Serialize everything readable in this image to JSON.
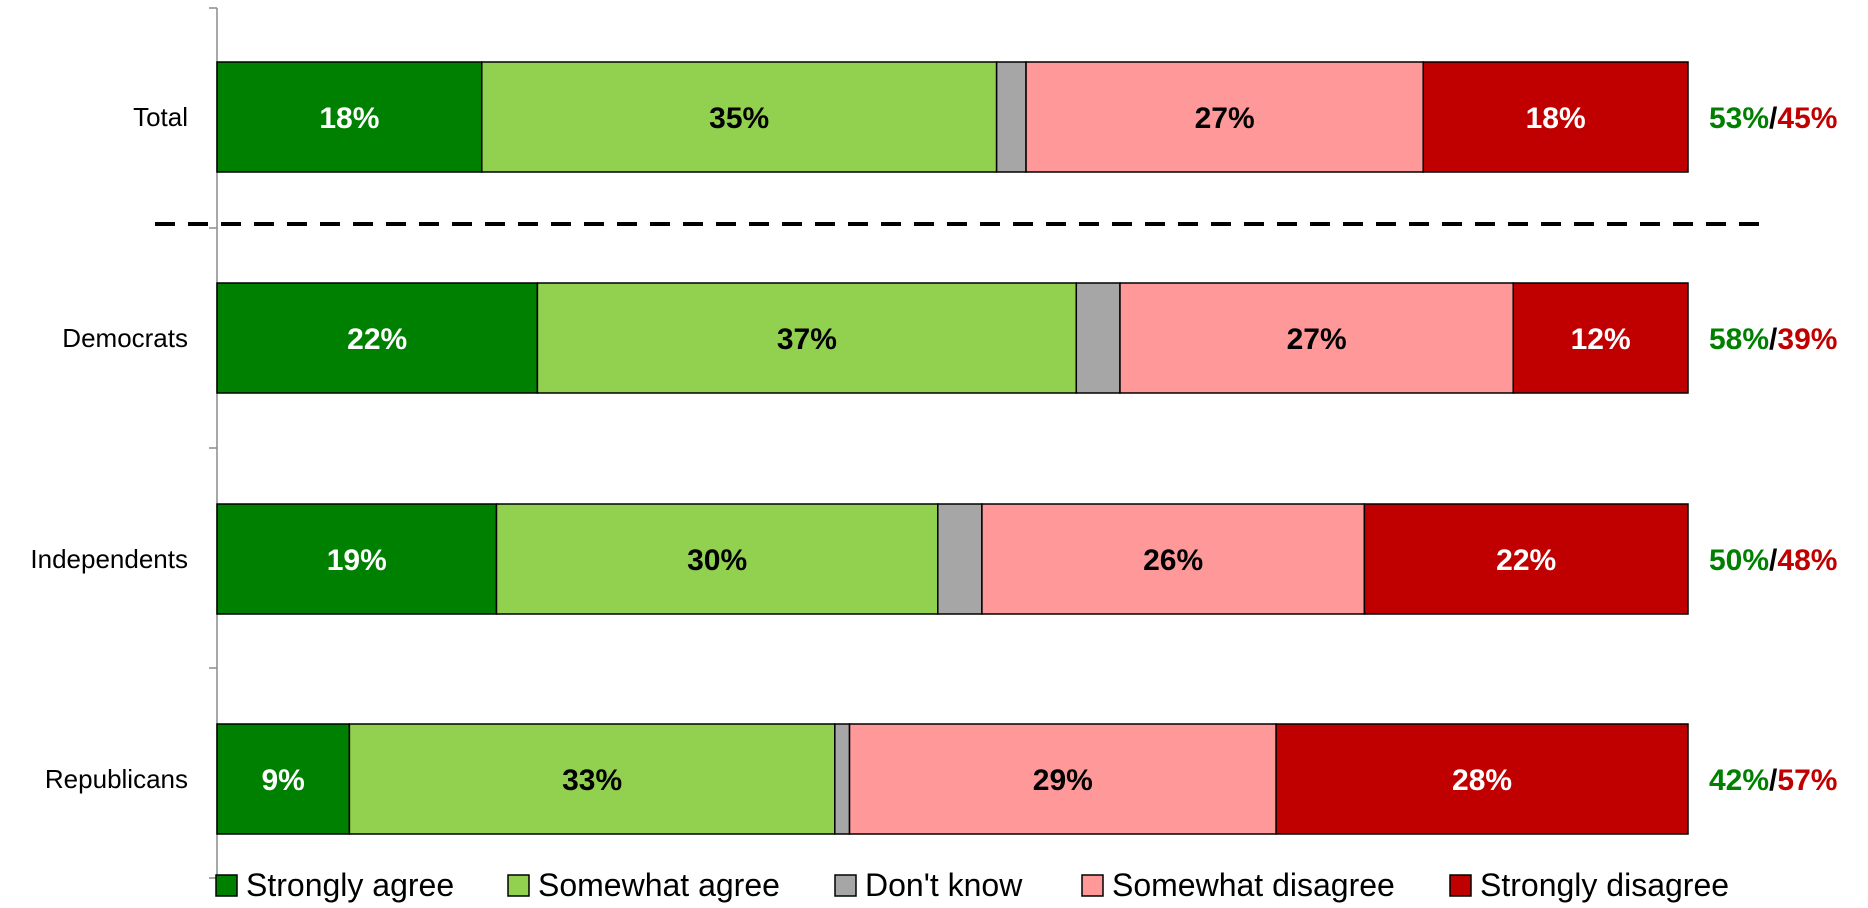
{
  "chart_data": {
    "type": "bar",
    "orientation": "horizontal",
    "stacked": true,
    "categories": [
      "Total",
      "Democrats",
      "Independents",
      "Republicans"
    ],
    "series": [
      {
        "name": "Strongly agree",
        "color": "#008000",
        "label_color": "#ffffff",
        "values": [
          18,
          22,
          19,
          9
        ]
      },
      {
        "name": "Somewhat agree",
        "color": "#92D050",
        "label_color": "#000000",
        "values": [
          35,
          37,
          30,
          33
        ]
      },
      {
        "name": "Don't know",
        "color": "#A6A6A6",
        "label_color": "#000000",
        "values": [
          2,
          3,
          3,
          1
        ]
      },
      {
        "name": "Somewhat disagree",
        "color": "#FF9999",
        "label_color": "#000000",
        "values": [
          27,
          27,
          26,
          29
        ]
      },
      {
        "name": "Strongly disagree",
        "color": "#C00000",
        "label_color": "#ffffff",
        "values": [
          18,
          12,
          22,
          28
        ]
      }
    ],
    "data_labels": [
      [
        "18%",
        "35%",
        "",
        "27%",
        "18%"
      ],
      [
        "22%",
        "37%",
        "",
        "27%",
        "12%"
      ],
      [
        "19%",
        "30%",
        "",
        "26%",
        "22%"
      ],
      [
        "9%",
        "33%",
        "",
        "29%",
        "28%"
      ]
    ],
    "totals": [
      {
        "agree": "53%",
        "separator": "/",
        "disagree": "45%"
      },
      {
        "agree": "58%",
        "separator": "/",
        "disagree": "39%"
      },
      {
        "agree": "50%",
        "separator": "/",
        "disagree": "48%"
      },
      {
        "agree": "42%",
        "separator": "/",
        "disagree": "57%"
      }
    ],
    "totals_colors": {
      "agree": "#008000",
      "separator": "#000000",
      "disagree": "#C00000"
    },
    "divider_after_category": "Total",
    "divider_style": "dashed",
    "legend_position": "bottom",
    "title": "",
    "xlabel": "",
    "ylabel": ""
  }
}
